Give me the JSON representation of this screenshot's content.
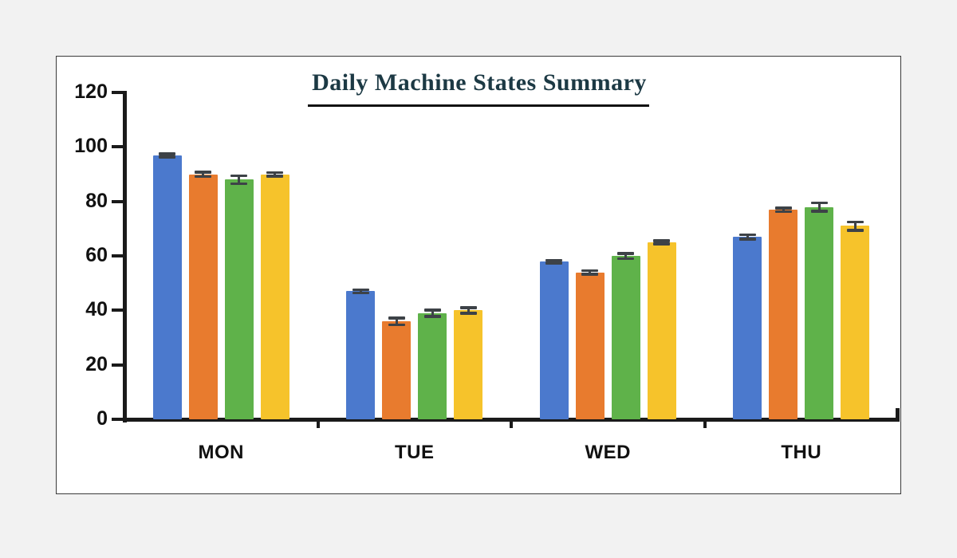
{
  "window": {
    "background_color": "#f2f2f2",
    "panel_background": "#ffffff",
    "panel_border_color": "#3a3a3a"
  },
  "chart_data": {
    "type": "bar",
    "title": "Daily Machine States Summary",
    "title_color": "#1c3944",
    "categories": [
      "MON",
      "TUE",
      "WED",
      "THU"
    ],
    "series": [
      {
        "name": "blue",
        "color": "#4b79cd",
        "values": [
          97,
          47,
          58,
          67
        ],
        "errors": [
          0.6,
          0.6,
          0.5,
          0.8
        ]
      },
      {
        "name": "orange",
        "color": "#e87b2e",
        "values": [
          90,
          36,
          54,
          77
        ],
        "errors": [
          0.8,
          1.2,
          0.6,
          0.7
        ]
      },
      {
        "name": "green",
        "color": "#5fb24a",
        "values": [
          88,
          39,
          60,
          78
        ],
        "errors": [
          1.5,
          1.2,
          1.0,
          1.5
        ]
      },
      {
        "name": "yellow",
        "color": "#f6c32b",
        "values": [
          90,
          40,
          65,
          71
        ],
        "errors": [
          0.6,
          1.0,
          0.6,
          1.5
        ]
      }
    ],
    "error_bars": true,
    "error_bar_color": "#3d4247",
    "xlabel": "",
    "ylabel": "",
    "ylim": [
      0,
      120
    ],
    "yticks": [
      0,
      20,
      40,
      60,
      80,
      100,
      120
    ],
    "grid": false,
    "legend": "none",
    "axis_color": "#1a1a1a"
  }
}
